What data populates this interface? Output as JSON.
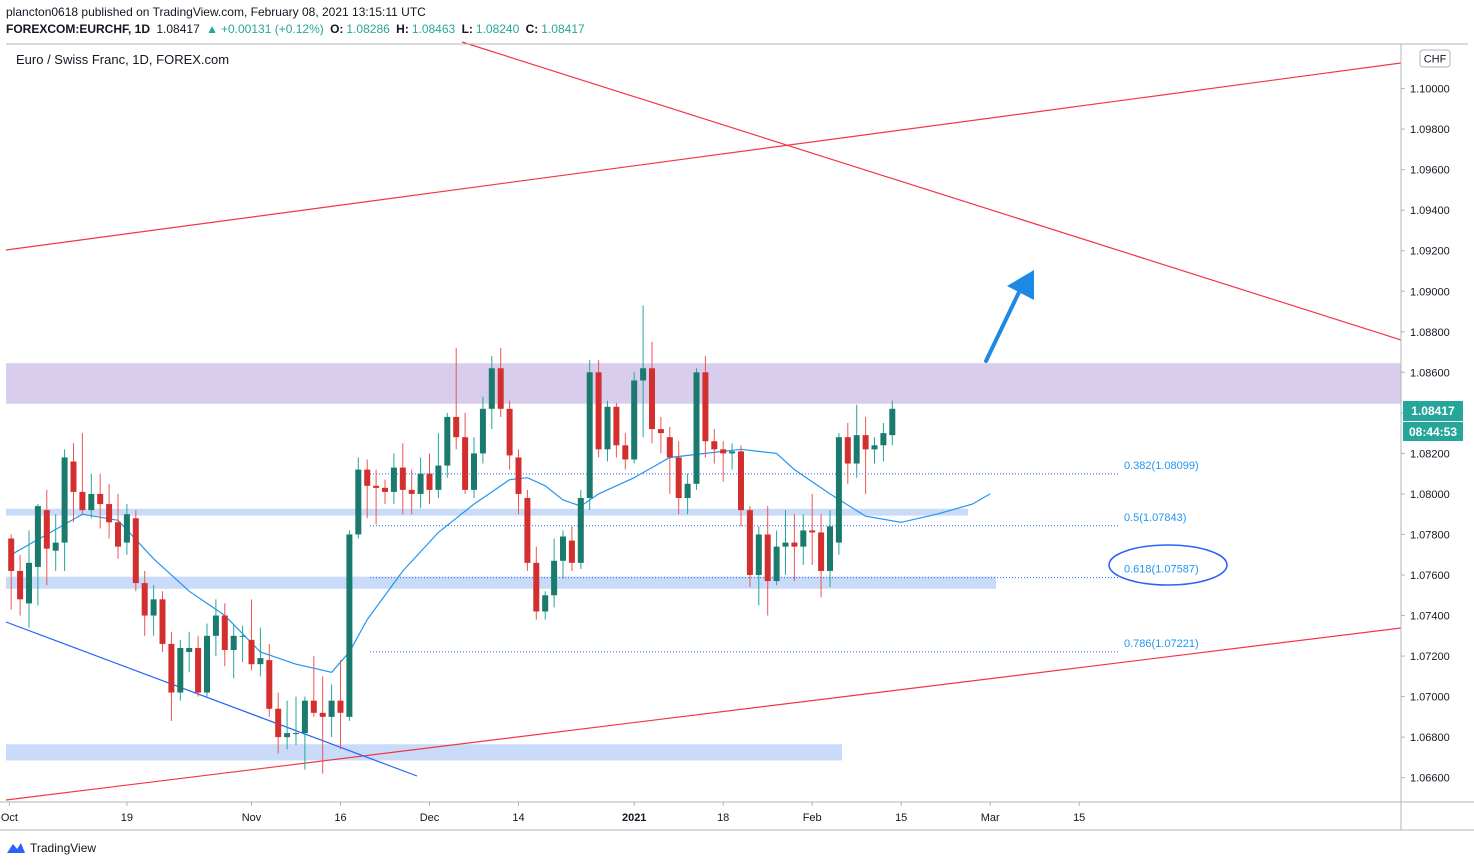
{
  "header": {
    "publisher_line": "plancton0618 published on TradingView.com, February 08, 2021 13:15:11 UTC",
    "symbol": "FOREXCOM:EURCHF, 1D",
    "last": "1.08417",
    "change_arrow": "▲",
    "change": "+0.00131 (+0.12%)",
    "o_label": "O:",
    "o_value": "1.08286",
    "h_label": "H:",
    "h_value": "1.08463",
    "l_label": "L:",
    "l_value": "1.08240",
    "c_label": "C:",
    "c_value": "1.08417"
  },
  "footer": {
    "brand": "TradingView"
  },
  "chart_data": {
    "type": "candlestick",
    "title": "Euro / Swiss Franc, 1D, FOREX.com",
    "currency_badge": "CHF",
    "ylim": [
      1.0648,
      1.1022
    ],
    "y_ticks": [
      "1.06600",
      "1.06800",
      "1.07000",
      "1.07200",
      "1.07400",
      "1.07600",
      "1.07800",
      "1.08000",
      "1.08200",
      "1.08400",
      "1.08600",
      "1.08800",
      "1.09000",
      "1.09200",
      "1.09400",
      "1.09600",
      "1.09800",
      "1.10000"
    ],
    "x_ticks": [
      {
        "label": "Oct",
        "bar": -0.2
      },
      {
        "label": "19",
        "bar": 13
      },
      {
        "label": "Nov",
        "bar": 27
      },
      {
        "label": "16",
        "bar": 37
      },
      {
        "label": "Dec",
        "bar": 47
      },
      {
        "label": "14",
        "bar": 57
      },
      {
        "label": "2021",
        "bar": 70
      },
      {
        "label": "18",
        "bar": 80
      },
      {
        "label": "Feb",
        "bar": 90
      },
      {
        "label": "15",
        "bar": 100
      },
      {
        "label": "Mar",
        "bar": 110
      },
      {
        "label": "15",
        "bar": 120
      }
    ],
    "ohlc": [
      [
        1.0778,
        1.078,
        1.0743,
        1.0762
      ],
      [
        1.0762,
        1.077,
        1.074,
        1.0748
      ],
      [
        1.0746,
        1.0782,
        1.0734,
        1.0766
      ],
      [
        1.0764,
        1.0795,
        1.0745,
        1.0794
      ],
      [
        1.0792,
        1.0802,
        1.0755,
        1.0773
      ],
      [
        1.0772,
        1.079,
        1.0762,
        1.0776
      ],
      [
        1.0776,
        1.0822,
        1.0762,
        1.0818
      ],
      [
        1.0816,
        1.0825,
        1.0786,
        1.0801
      ],
      [
        1.0801,
        1.083,
        1.079,
        1.0792
      ],
      [
        1.0792,
        1.081,
        1.0788,
        1.08
      ],
      [
        1.08,
        1.081,
        1.0783,
        1.0795
      ],
      [
        1.0795,
        1.0805,
        1.0778,
        1.0786
      ],
      [
        1.0786,
        1.08,
        1.0768,
        1.0774
      ],
      [
        1.0776,
        1.0795,
        1.077,
        1.079
      ],
      [
        1.0788,
        1.0792,
        1.0752,
        1.0756
      ],
      [
        1.0756,
        1.0762,
        1.073,
        1.074
      ],
      [
        1.074,
        1.0755,
        1.073,
        1.0748
      ],
      [
        1.0748,
        1.0752,
        1.0722,
        1.0726
      ],
      [
        1.0726,
        1.0732,
        1.0688,
        1.0702
      ],
      [
        1.0702,
        1.0728,
        1.0698,
        1.0724
      ],
      [
        1.0722,
        1.0732,
        1.0712,
        1.0724
      ],
      [
        1.0724,
        1.073,
        1.07,
        1.0702
      ],
      [
        1.0702,
        1.0736,
        1.07,
        1.073
      ],
      [
        1.073,
        1.0748,
        1.072,
        1.074
      ],
      [
        1.074,
        1.0746,
        1.0715,
        1.0723
      ],
      [
        1.0723,
        1.0736,
        1.0709,
        1.073
      ],
      [
        1.073,
        1.0735,
        1.0717,
        1.073
      ],
      [
        1.0728,
        1.0748,
        1.0713,
        1.0716
      ],
      [
        1.0716,
        1.0734,
        1.071,
        1.0719
      ],
      [
        1.0718,
        1.0726,
        1.069,
        1.0694
      ],
      [
        1.0694,
        1.0702,
        1.0672,
        1.068
      ],
      [
        1.068,
        1.0698,
        1.0674,
        1.0682
      ],
      [
        1.0682,
        1.07,
        1.0676,
        1.0682
      ],
      [
        1.0682,
        1.07,
        1.0664,
        1.0698
      ],
      [
        1.0698,
        1.072,
        1.069,
        1.0692
      ],
      [
        1.0692,
        1.071,
        1.0662,
        1.069
      ],
      [
        1.069,
        1.0706,
        1.068,
        1.0698
      ],
      [
        1.0698,
        1.0718,
        1.0674,
        1.0692
      ],
      [
        1.069,
        1.0782,
        1.0688,
        1.078
      ],
      [
        1.078,
        1.0818,
        1.0778,
        1.0812
      ],
      [
        1.0812,
        1.0817,
        1.0788,
        1.0804
      ],
      [
        1.0804,
        1.0812,
        1.0785,
        1.0803
      ],
      [
        1.0803,
        1.0807,
        1.0795,
        1.0801
      ],
      [
        1.0801,
        1.082,
        1.0795,
        1.0813
      ],
      [
        1.0813,
        1.0825,
        1.079,
        1.0802
      ],
      [
        1.0802,
        1.0812,
        1.079,
        1.08
      ],
      [
        1.08,
        1.0818,
        1.0793,
        1.081
      ],
      [
        1.081,
        1.082,
        1.0795,
        1.0802
      ],
      [
        1.0802,
        1.083,
        1.0798,
        1.0814
      ],
      [
        1.0814,
        1.084,
        1.0808,
        1.0838
      ],
      [
        1.0838,
        1.0872,
        1.0822,
        1.0828
      ],
      [
        1.0828,
        1.084,
        1.08,
        1.0802
      ],
      [
        1.0802,
        1.0828,
        1.0798,
        1.082
      ],
      [
        1.082,
        1.0848,
        1.0815,
        1.0842
      ],
      [
        1.0842,
        1.0868,
        1.0832,
        1.0862
      ],
      [
        1.0862,
        1.0872,
        1.0838,
        1.0842
      ],
      [
        1.0842,
        1.0846,
        1.0812,
        1.0819
      ],
      [
        1.0818,
        1.0822,
        1.079,
        1.08
      ],
      [
        1.0798,
        1.0802,
        1.0762,
        1.0766
      ],
      [
        1.0766,
        1.0774,
        1.0738,
        1.0742
      ],
      [
        1.0742,
        1.0752,
        1.0738,
        1.075
      ],
      [
        1.075,
        1.0778,
        1.0744,
        1.0767
      ],
      [
        1.0767,
        1.0782,
        1.0758,
        1.0779
      ],
      [
        1.0777,
        1.0784,
        1.0762,
        1.0766
      ],
      [
        1.0766,
        1.0802,
        1.0763,
        1.0798
      ],
      [
        1.0798,
        1.0866,
        1.0792,
        1.086
      ],
      [
        1.086,
        1.0866,
        1.0818,
        1.0822
      ],
      [
        1.0822,
        1.0846,
        1.0816,
        1.0843
      ],
      [
        1.0843,
        1.0845,
        1.0818,
        1.0824
      ],
      [
        1.0824,
        1.083,
        1.0812,
        1.0817
      ],
      [
        1.0817,
        1.086,
        1.0815,
        1.0856
      ],
      [
        1.0856,
        1.0893,
        1.0828,
        1.0862
      ],
      [
        1.0862,
        1.0875,
        1.0825,
        1.0832
      ],
      [
        1.0832,
        1.0838,
        1.082,
        1.083
      ],
      [
        1.0828,
        1.0833,
        1.08,
        1.0818
      ],
      [
        1.0818,
        1.0826,
        1.079,
        1.0798
      ],
      [
        1.0798,
        1.081,
        1.079,
        1.0805
      ],
      [
        1.0805,
        1.0862,
        1.0802,
        1.086
      ],
      [
        1.086,
        1.0868,
        1.0818,
        1.0826
      ],
      [
        1.0826,
        1.0832,
        1.0815,
        1.0822
      ],
      [
        1.0822,
        1.0826,
        1.0806,
        1.082
      ],
      [
        1.082,
        1.0825,
        1.0812,
        1.0821
      ],
      [
        1.0821,
        1.0824,
        1.0784,
        1.0792
      ],
      [
        1.0792,
        1.0794,
        1.0754,
        1.076
      ],
      [
        1.076,
        1.0784,
        1.0745,
        1.078
      ],
      [
        1.078,
        1.0794,
        1.074,
        1.0757
      ],
      [
        1.0757,
        1.0782,
        1.0755,
        1.0774
      ],
      [
        1.0774,
        1.0792,
        1.076,
        1.0776
      ],
      [
        1.0776,
        1.079,
        1.0757,
        1.0774
      ],
      [
        1.0774,
        1.079,
        1.0765,
        1.0782
      ],
      [
        1.0782,
        1.08,
        1.0765,
        1.0781
      ],
      [
        1.0781,
        1.079,
        1.0749,
        1.0762
      ],
      [
        1.0762,
        1.0792,
        1.0754,
        1.0784
      ],
      [
        1.0776,
        1.083,
        1.077,
        1.0828
      ],
      [
        1.0828,
        1.0835,
        1.0805,
        1.0815
      ],
      [
        1.0815,
        1.0844,
        1.0808,
        1.0829
      ],
      [
        1.0829,
        1.0838,
        1.08,
        1.0822
      ],
      [
        1.0822,
        1.0828,
        1.0815,
        1.0824
      ],
      [
        1.0824,
        1.0835,
        1.0816,
        1.083
      ],
      [
        1.0829,
        1.0846,
        1.0824,
        1.0842
      ]
    ],
    "sma": [
      [
        0,
        1.077
      ],
      [
        4,
        1.078
      ],
      [
        8,
        1.079
      ],
      [
        12,
        1.0787
      ],
      [
        16,
        1.0768
      ],
      [
        20,
        1.0752
      ],
      [
        24,
        1.074
      ],
      [
        28,
        1.0722
      ],
      [
        32,
        1.0716
      ],
      [
        34,
        1.0714
      ],
      [
        36,
        1.0712
      ],
      [
        38,
        1.0722
      ],
      [
        40,
        1.0738
      ],
      [
        44,
        1.0762
      ],
      [
        48,
        1.0781
      ],
      [
        52,
        1.0795
      ],
      [
        56,
        1.0807
      ],
      [
        58,
        1.0808
      ],
      [
        60,
        1.0804
      ],
      [
        62,
        1.0797
      ],
      [
        64,
        1.0794
      ],
      [
        66,
        1.08
      ],
      [
        70,
        1.0808
      ],
      [
        74,
        1.0818
      ],
      [
        78,
        1.082
      ],
      [
        82,
        1.0822
      ],
      [
        86,
        1.082
      ],
      [
        88,
        1.0812
      ],
      [
        92,
        1.08
      ],
      [
        96,
        1.0789
      ],
      [
        100,
        1.0786
      ],
      [
        104,
        1.079
      ],
      [
        108,
        1.0795
      ],
      [
        110,
        1.08
      ]
    ],
    "resistance_zone": [
      1.08445,
      1.08645
    ],
    "support_zones": [
      {
        "from": 1.07893,
        "to": 1.07927
      },
      {
        "from": 1.07532,
        "to": 1.07592
      },
      {
        "from": 1.06685,
        "to": 1.06765
      }
    ],
    "fibonacci": [
      {
        "label": "0.382(1.08099)",
        "value": 1.08099
      },
      {
        "label": "0.5(1.07843)",
        "value": 1.07843
      },
      {
        "label": "0.618(1.07587)",
        "value": 1.07587
      },
      {
        "label": "0.786(1.07221)",
        "value": 1.07221
      }
    ],
    "price_badge": "1.08417",
    "countdown_badge": "08:44:53"
  }
}
